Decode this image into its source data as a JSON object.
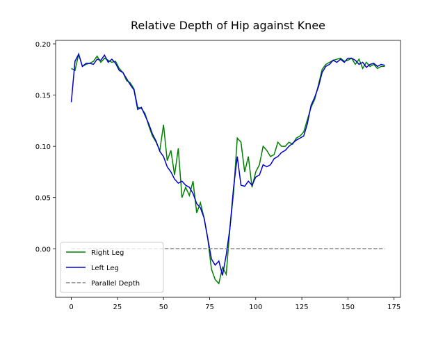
{
  "chart_data": {
    "type": "line",
    "title": "Relative Depth of Hip against Knee",
    "xlim": [
      -8.5,
      178.5
    ],
    "ylim": [
      -0.0474,
      0.2034
    ],
    "xticks": [
      0,
      25,
      50,
      75,
      100,
      125,
      150,
      175
    ],
    "yticks": [
      {
        "value": 0,
        "label": "0.00"
      },
      {
        "value": 0.05,
        "label": "0.05"
      },
      {
        "value": 0.1,
        "label": "0.10"
      },
      {
        "value": 0.15,
        "label": "0.15"
      },
      {
        "value": 0.2,
        "label": "0.20"
      }
    ],
    "legend": "lower left",
    "series": [
      {
        "name": "Right Leg",
        "color": "#008000",
        "style": "solid",
        "x": [
          0,
          2,
          4,
          6,
          8,
          10,
          12,
          14,
          16,
          18,
          20,
          22,
          24,
          26,
          28,
          30,
          32,
          34,
          36,
          38,
          40,
          42,
          44,
          46,
          48,
          50,
          52,
          54,
          56,
          58,
          60,
          62,
          64,
          66,
          68,
          70,
          72,
          74,
          76,
          78,
          80,
          82,
          84,
          86,
          88,
          90,
          92,
          94,
          96,
          98,
          100,
          102,
          104,
          106,
          108,
          110,
          112,
          114,
          116,
          118,
          120,
          122,
          124,
          126,
          128,
          130,
          132,
          134,
          136,
          138,
          140,
          142,
          144,
          146,
          148,
          150,
          152,
          154,
          156,
          158,
          160,
          162,
          164,
          166,
          168,
          170
        ],
        "values": [
          0.176,
          0.174,
          0.19,
          0.178,
          0.18,
          0.181,
          0.183,
          0.188,
          0.182,
          0.186,
          0.184,
          0.182,
          0.183,
          0.176,
          0.172,
          0.164,
          0.162,
          0.156,
          0.138,
          0.137,
          0.132,
          0.12,
          0.11,
          0.104,
          0.096,
          0.121,
          0.086,
          0.096,
          0.072,
          0.098,
          0.05,
          0.06,
          0.052,
          0.066,
          0.035,
          0.045,
          0.03,
          0.01,
          -0.02,
          -0.03,
          -0.034,
          -0.018,
          -0.025,
          0.02,
          0.055,
          0.108,
          0.104,
          0.075,
          0.09,
          0.06,
          0.075,
          0.082,
          0.1,
          0.096,
          0.09,
          0.092,
          0.104,
          0.1,
          0.1,
          0.104,
          0.102,
          0.108,
          0.11,
          0.114,
          0.126,
          0.138,
          0.146,
          0.16,
          0.175,
          0.18,
          0.182,
          0.184,
          0.185,
          0.186,
          0.183,
          0.184,
          0.186,
          0.18,
          0.185,
          0.176,
          0.182,
          0.178,
          0.18,
          0.176,
          0.178,
          0.178
        ]
      },
      {
        "name": "Left Leg",
        "color": "#0000cd",
        "style": "solid",
        "x": [
          0,
          2,
          4,
          6,
          8,
          10,
          12,
          14,
          16,
          18,
          20,
          22,
          24,
          26,
          28,
          30,
          32,
          34,
          36,
          38,
          40,
          42,
          44,
          46,
          48,
          50,
          52,
          54,
          56,
          58,
          60,
          62,
          64,
          66,
          68,
          70,
          72,
          74,
          76,
          78,
          80,
          82,
          84,
          86,
          88,
          90,
          92,
          94,
          96,
          98,
          100,
          102,
          104,
          106,
          108,
          110,
          112,
          114,
          116,
          118,
          120,
          122,
          124,
          126,
          128,
          130,
          132,
          134,
          136,
          138,
          140,
          142,
          144,
          146,
          148,
          150,
          152,
          154,
          156,
          158,
          160,
          162,
          164,
          166,
          168,
          170
        ],
        "values": [
          0.143,
          0.183,
          0.19,
          0.178,
          0.181,
          0.181,
          0.18,
          0.185,
          0.184,
          0.189,
          0.182,
          0.185,
          0.181,
          0.174,
          0.172,
          0.166,
          0.16,
          0.155,
          0.136,
          0.138,
          0.13,
          0.122,
          0.112,
          0.105,
          0.095,
          0.09,
          0.08,
          0.075,
          0.068,
          0.064,
          0.066,
          0.062,
          0.06,
          0.054,
          0.044,
          0.04,
          0.03,
          0.01,
          -0.01,
          -0.016,
          -0.012,
          -0.026,
          -0.006,
          0.02,
          0.06,
          0.09,
          0.062,
          0.061,
          0.066,
          0.062,
          0.07,
          0.072,
          0.082,
          0.08,
          0.082,
          0.088,
          0.09,
          0.094,
          0.096,
          0.1,
          0.103,
          0.106,
          0.108,
          0.11,
          0.122,
          0.14,
          0.148,
          0.158,
          0.172,
          0.178,
          0.18,
          0.184,
          0.182,
          0.185,
          0.182,
          0.186,
          0.186,
          0.184,
          0.18,
          0.182,
          0.177,
          0.18,
          0.181,
          0.178,
          0.18,
          0.179
        ]
      },
      {
        "name": "Parallel Depth",
        "color": "#808080",
        "style": "dashed",
        "x": [
          0,
          170
        ],
        "values": [
          0,
          0
        ]
      }
    ]
  }
}
